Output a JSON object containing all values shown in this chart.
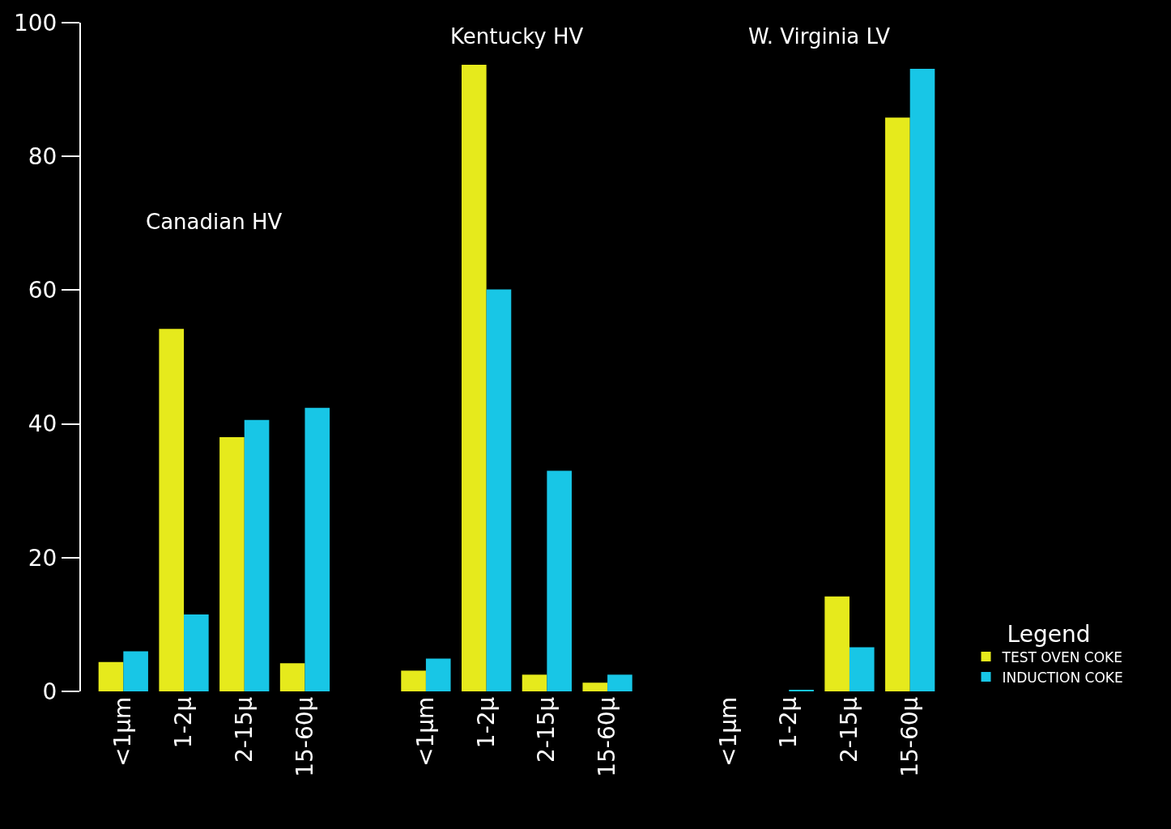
{
  "chart_data": {
    "type": "bar",
    "categories": [
      "<1µm",
      "1-2µ",
      "2-15µ",
      "15-60µ",
      null,
      "<1µm",
      "1-2µ",
      "2-15µ",
      "15-60µ",
      null,
      "<1µm",
      "1-2µ",
      "2-15µ",
      "15-60µ"
    ],
    "series": [
      {
        "name": "TEST OVEN COKE",
        "color": "#e6ea1c",
        "values": [
          4.4,
          54.2,
          38.0,
          4.2,
          null,
          3.1,
          93.7,
          2.5,
          1.3,
          null,
          null,
          null,
          14.2,
          85.8
        ]
      },
      {
        "name": "INDUCTION COKE",
        "color": "#18c6e6",
        "values": [
          6.0,
          11.5,
          40.6,
          42.4,
          null,
          4.9,
          60.1,
          33.0,
          2.5,
          null,
          null,
          0.2,
          6.6,
          93.1
        ]
      }
    ],
    "annotations": [
      "Canadian HV",
      "Kentucky HV",
      "W. Virginia LV"
    ],
    "legend_title": "Legend",
    "legend": "bottom right",
    "ylim": [
      0,
      100
    ],
    "yticks": [
      0,
      20,
      40,
      60,
      80,
      100
    ],
    "grid": false
  }
}
